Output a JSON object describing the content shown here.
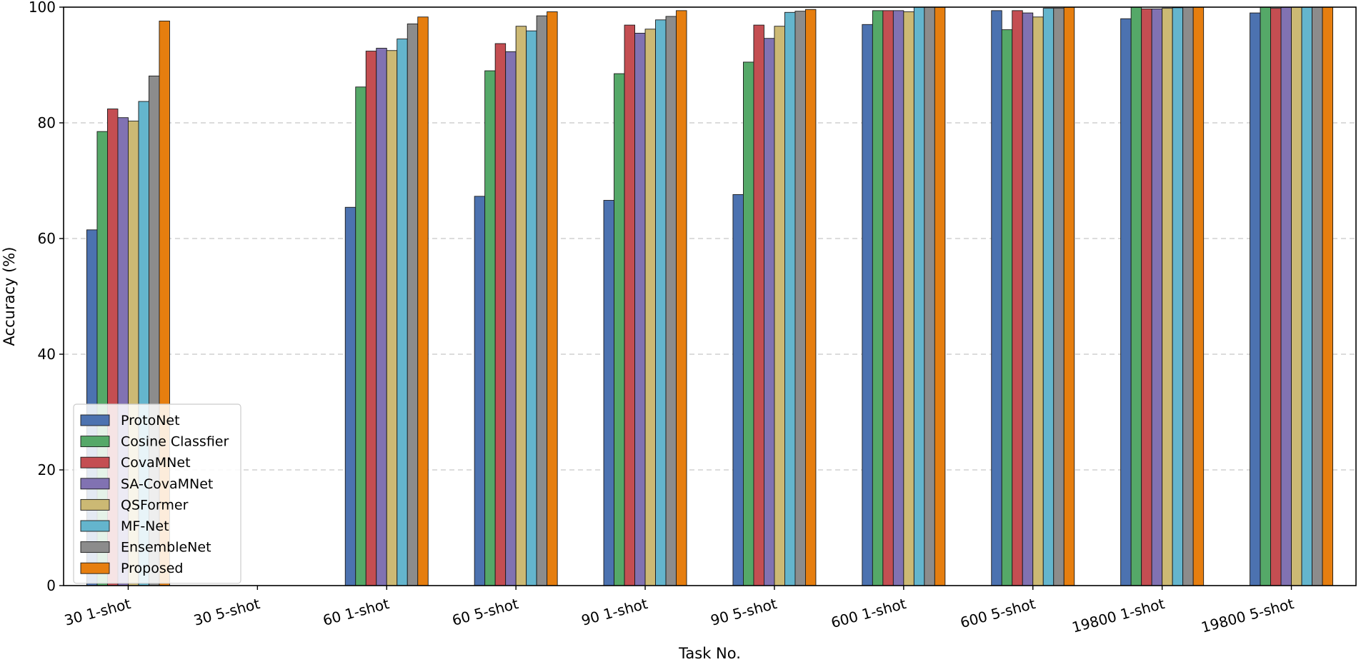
{
  "chart_data": {
    "type": "bar",
    "title": "",
    "xlabel": "Task No.",
    "ylabel": "Accuracy (%)",
    "ylim": [
      0,
      100
    ],
    "yticks": [
      0,
      20,
      40,
      60,
      80,
      100
    ],
    "grid": "horizontal dashed",
    "legend_position": "lower-left",
    "categories": [
      "30 1-shot",
      "30 5-shot",
      "60 1-shot",
      "60 5-shot",
      "90 1-shot",
      "90 5-shot",
      "600 1-shot",
      "600 5-shot",
      "19800 1-shot",
      "19800 5-shot"
    ],
    "series": [
      {
        "name": "ProtoNet",
        "color": "#4c72b0",
        "values": [
          61.5,
          null,
          65.4,
          67.3,
          66.6,
          67.6,
          97.0,
          99.4,
          98.0,
          99.0
        ]
      },
      {
        "name": "Cosine Classfier",
        "color": "#55a868",
        "values": [
          78.5,
          null,
          86.2,
          89.0,
          88.5,
          90.5,
          99.4,
          96.1,
          100.0,
          100.0
        ]
      },
      {
        "name": "CovaMNet",
        "color": "#c44e52",
        "values": [
          82.4,
          null,
          92.4,
          93.7,
          96.9,
          96.9,
          99.4,
          99.4,
          99.7,
          99.8
        ]
      },
      {
        "name": "SA-CovaMNet",
        "color": "#8172b2",
        "values": [
          80.9,
          null,
          92.9,
          92.3,
          95.5,
          94.6,
          99.4,
          99.0,
          99.7,
          100.0
        ]
      },
      {
        "name": "QSFormer",
        "color": "#ccb974",
        "values": [
          80.3,
          null,
          92.5,
          96.7,
          96.2,
          96.7,
          99.2,
          98.3,
          99.8,
          100.0
        ]
      },
      {
        "name": "MF-Net",
        "color": "#64b5cd",
        "values": [
          83.7,
          null,
          94.5,
          95.9,
          97.8,
          99.1,
          100.0,
          99.8,
          99.9,
          100.0
        ]
      },
      {
        "name": "EnsembleNet",
        "color": "#8c8c8c",
        "values": [
          88.1,
          null,
          97.1,
          98.5,
          98.4,
          99.3,
          100.0,
          99.8,
          100.0,
          100.0
        ]
      },
      {
        "name": "Proposed",
        "color": "#e67e0f",
        "values": [
          97.6,
          null,
          98.3,
          99.2,
          99.4,
          99.6,
          100.0,
          100.0,
          100.0,
          100.0
        ]
      }
    ]
  }
}
